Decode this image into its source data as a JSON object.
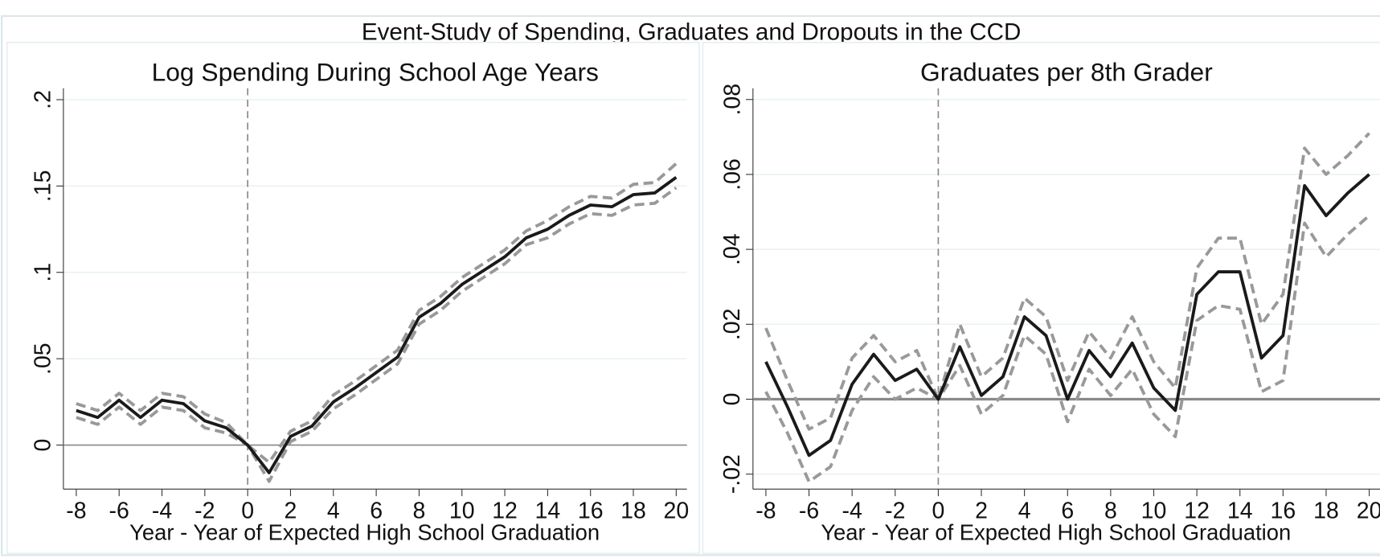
{
  "title": "Event-Study of Spending, Graduates and Dropouts in the CCD",
  "chart_data": [
    {
      "type": "line",
      "title": "Log Spending During School Age Years",
      "xlabel": "Year - Year of Expected High School Graduation",
      "x": [
        -8,
        -7,
        -6,
        -5,
        -4,
        -3,
        -2,
        -1,
        0,
        1,
        2,
        3,
        4,
        5,
        6,
        7,
        8,
        9,
        10,
        11,
        12,
        13,
        14,
        15,
        16,
        17,
        18,
        19,
        20
      ],
      "series": [
        {
          "color": "#1a1a1a",
          "dash": false,
          "values": [
            0.02,
            0.016,
            0.026,
            0.016,
            0.026,
            0.024,
            0.014,
            0.01,
            0,
            -0.016,
            0.005,
            0.011,
            0.025,
            0.033,
            0.042,
            0.051,
            0.074,
            0.082,
            0.093,
            0.101,
            0.109,
            0.12,
            0.125,
            0.133,
            0.139,
            0.138,
            0.145,
            0.146,
            0.155
          ]
        },
        {
          "color": "#999999",
          "dash": true,
          "values": [
            0.024,
            0.02,
            0.03,
            0.02,
            0.03,
            0.028,
            0.018,
            0.013,
            0,
            -0.01,
            0.008,
            0.014,
            0.029,
            0.037,
            0.046,
            0.055,
            0.078,
            0.086,
            0.097,
            0.105,
            0.113,
            0.124,
            0.13,
            0.138,
            0.144,
            0.143,
            0.151,
            0.152,
            0.163
          ]
        },
        {
          "color": "#999999",
          "dash": true,
          "values": [
            0.016,
            0.012,
            0.022,
            0.012,
            0.022,
            0.02,
            0.01,
            0.007,
            0,
            -0.021,
            0.002,
            0.008,
            0.021,
            0.029,
            0.038,
            0.047,
            0.07,
            0.078,
            0.089,
            0.097,
            0.105,
            0.116,
            0.12,
            0.128,
            0.134,
            0.133,
            0.139,
            0.14,
            0.149
          ]
        }
      ],
      "xlim": [
        -8.6,
        20.5
      ],
      "ylim": [
        -0.0255,
        0.2066
      ],
      "xticks": [
        -8,
        -6,
        -4,
        -2,
        0,
        2,
        4,
        6,
        8,
        10,
        12,
        14,
        16,
        18,
        20
      ],
      "yticks": [
        0,
        {
          "value": 0.05,
          "label": ".05"
        },
        {
          "value": 0.1,
          "label": ".1"
        },
        {
          "value": 0.15,
          "label": ".15"
        },
        {
          "value": 0.2,
          "label": ".2"
        }
      ],
      "grid": true,
      "hline": 0,
      "vline": 0
    },
    {
      "type": "line",
      "title": "Graduates per 8th Grader",
      "xlabel": "Year - Year of Expected High School Graduation",
      "x": [
        -8,
        -7,
        -6,
        -5,
        -4,
        -3,
        -2,
        -1,
        0,
        1,
        2,
        3,
        4,
        5,
        6,
        7,
        8,
        9,
        10,
        11,
        12,
        13,
        14,
        15,
        16,
        17,
        18,
        19,
        20
      ],
      "series": [
        {
          "color": "#1a1a1a",
          "dash": false,
          "values": [
            0.01,
            -0.002,
            -0.015,
            -0.011,
            0.004,
            0.012,
            0.005,
            0.008,
            0,
            0.014,
            0.001,
            0.006,
            0.022,
            0.017,
            0,
            0.013,
            0.006,
            0.015,
            0.003,
            -0.003,
            0.028,
            0.034,
            0.034,
            0.011,
            0.017,
            0.057,
            0.049,
            0.055,
            0.06
          ]
        },
        {
          "color": "#999999",
          "dash": true,
          "values": [
            0.019,
            0.005,
            -0.008,
            -0.005,
            0.011,
            0.017,
            0.01,
            0.013,
            0,
            0.02,
            0.006,
            0.011,
            0.027,
            0.022,
            0.005,
            0.018,
            0.011,
            0.022,
            0.01,
            0.003,
            0.035,
            0.043,
            0.043,
            0.02,
            0.028,
            0.067,
            0.06,
            0.065,
            0.071
          ]
        },
        {
          "color": "#999999",
          "dash": true,
          "values": [
            0.002,
            -0.009,
            -0.022,
            -0.018,
            -0.003,
            0.006,
            0,
            0.003,
            0,
            0.009,
            -0.004,
            0.001,
            0.017,
            0.012,
            -0.006,
            0.008,
            0.001,
            0.008,
            -0.004,
            -0.01,
            0.021,
            0.025,
            0.024,
            0.002,
            0.005,
            0.047,
            0.038,
            0.044,
            0.049
          ]
        }
      ],
      "xlim": [
        -8.6,
        20.5
      ],
      "ylim": [
        -0.024,
        0.083
      ],
      "xticks": [
        -8,
        -6,
        -4,
        -2,
        0,
        2,
        4,
        6,
        8,
        10,
        12,
        14,
        16,
        18,
        20
      ],
      "yticks": [
        {
          "value": -0.02,
          "label": "-.02"
        },
        0,
        {
          "value": 0.02,
          "label": ".02"
        },
        {
          "value": 0.04,
          "label": ".04"
        },
        {
          "value": 0.06,
          "label": ".06"
        },
        {
          "value": 0.08,
          "label": ".08"
        }
      ],
      "grid": true,
      "hline": 0,
      "vline": 0
    }
  ]
}
